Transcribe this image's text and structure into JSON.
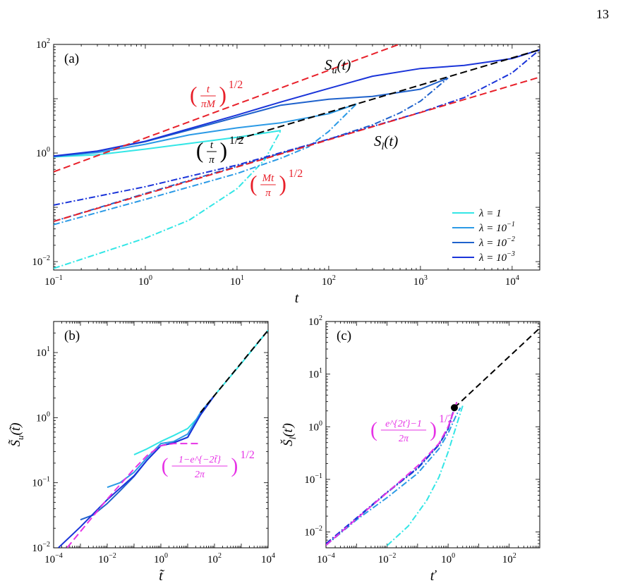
{
  "page_number": "13",
  "colors": {
    "lambda_1": "#33e6e6",
    "lambda_1e-1": "#2b9ae6",
    "lambda_1e-2": "#1f62cc",
    "lambda_1e-3": "#1a34d9",
    "asymptote_red": "#e8202a",
    "reference_black": "#000000",
    "magenta": "#e633e6"
  },
  "chart_data": [
    {
      "panel": "(a)",
      "type": "line",
      "xscale": "log",
      "yscale": "log",
      "xlabel": "t",
      "xlim": [
        0.1,
        20000
      ],
      "ylim": [
        0.007,
        100
      ],
      "xticks": [
        "10^{-1}",
        "10^{0}",
        "10^{1}",
        "10^{2}",
        "10^{3}",
        "10^{4}"
      ],
      "yticks": [
        "10^{-2}",
        "10^{0}",
        "10^{2}"
      ],
      "legend": {
        "position": "bottom-right",
        "entries": [
          "λ = 1",
          "λ = 10^{-1}",
          "λ = 10^{-2}",
          "λ = 10^{-3}"
        ]
      },
      "annotations": [
        "S_u(t)",
        "S_l(t)",
        "(t/(πM))^{1/2}",
        "(t/π)^{1/2}",
        "(Mt/π)^{1/2}"
      ],
      "series": [
        {
          "name": "λ = 1",
          "curve": "S_u",
          "style": "solid",
          "x": [
            0.1,
            0.3,
            1,
            3,
            10,
            30
          ],
          "y": [
            0.85,
            0.93,
            1.18,
            1.5,
            1.95,
            2.6
          ]
        },
        {
          "name": "λ = 10^{-1}",
          "curve": "S_u",
          "style": "solid",
          "x": [
            0.1,
            0.3,
            1,
            3,
            10,
            30,
            100,
            200
          ],
          "y": [
            0.86,
            1.02,
            1.45,
            2.15,
            2.9,
            3.6,
            5.3,
            8.0
          ]
        },
        {
          "name": "λ = 10^{-2}",
          "curve": "S_u",
          "style": "solid",
          "x": [
            0.1,
            0.3,
            1,
            3,
            10,
            30,
            100,
            300,
            1000,
            2000
          ],
          "y": [
            0.87,
            1.08,
            1.62,
            2.65,
            4.6,
            7.6,
            9.8,
            11.0,
            15.0,
            24.0
          ]
        },
        {
          "name": "λ = 10^{-3}",
          "curve": "S_u",
          "style": "solid",
          "x": [
            0.1,
            0.3,
            1,
            3,
            10,
            30,
            100,
            300,
            1000,
            3000,
            10000,
            20000
          ],
          "y": [
            0.88,
            1.09,
            1.65,
            2.8,
            5.0,
            8.7,
            15.5,
            26.0,
            36.0,
            41.0,
            55.0,
            80.0
          ]
        },
        {
          "name": "λ = 1",
          "curve": "S_l",
          "style": "dashdot",
          "x": [
            0.1,
            0.3,
            1,
            3,
            10,
            20,
            30
          ],
          "y": [
            0.0075,
            0.0138,
            0.027,
            0.058,
            0.22,
            0.75,
            2.6
          ]
        },
        {
          "name": "λ = 10^{-1}",
          "curve": "S_l",
          "style": "dashdot",
          "x": [
            0.1,
            1,
            10,
            30,
            60,
            100,
            200
          ],
          "y": [
            0.048,
            0.14,
            0.42,
            0.8,
            1.3,
            2.5,
            8.0
          ]
        },
        {
          "name": "λ = 10^{-2}",
          "curve": "S_l",
          "style": "dashdot",
          "x": [
            0.1,
            1,
            10,
            100,
            300,
            600,
            1000,
            2000
          ],
          "y": [
            0.055,
            0.18,
            0.57,
            1.8,
            3.3,
            5.5,
            9.0,
            24.0
          ]
        },
        {
          "name": "λ = 10^{-3}",
          "curve": "S_l",
          "style": "dashdot",
          "x": [
            0.1,
            1,
            10,
            100,
            1000,
            3000,
            10000,
            20000
          ],
          "y": [
            0.11,
            0.24,
            0.6,
            1.8,
            5.6,
            10.5,
            30.0,
            80.0
          ]
        },
        {
          "name": "(t/(πM))^{1/2}",
          "style": "dashed",
          "x": [
            0.1,
            1000
          ],
          "y": [
            0.45,
            140.0
          ]
        },
        {
          "name": "(Mt/π)^{1/2}",
          "style": "dashed",
          "x": [
            0.1,
            20000
          ],
          "y": [
            0.055,
            25.0
          ]
        },
        {
          "name": "(t/π)^{1/2}",
          "style": "dashed",
          "x": [
            10,
            20000
          ],
          "y": [
            1.78,
            80.0
          ]
        }
      ]
    },
    {
      "panel": "(b)",
      "type": "line",
      "xscale": "log",
      "yscale": "log",
      "xlabel": "t̃",
      "ylabel": "S̃_u(t̃)",
      "xlim": [
        0.0001,
        10000
      ],
      "ylim": [
        0.01,
        30
      ],
      "xticks": [
        "10^{-4}",
        "10^{-2}",
        "10^{0}",
        "10^{2}",
        "10^{4}"
      ],
      "yticks": [
        "10^{-2}",
        "10^{-1}",
        "10^{0}",
        "10^{1}"
      ],
      "annotations": [
        "((1−e^{−2t̃})/(2π))^{1/2}"
      ],
      "series": [
        {
          "name": "λ = 1",
          "style": "solid",
          "x": [
            0.1,
            0.3,
            1,
            3,
            10,
            30,
            100,
            1000,
            10000
          ],
          "y": [
            0.27,
            0.33,
            0.43,
            0.53,
            0.68,
            1.1,
            2.2,
            6.8,
            22.0
          ]
        },
        {
          "name": "λ = 10^{-1}",
          "style": "solid",
          "x": [
            0.01,
            0.03,
            0.1,
            0.3,
            1,
            3,
            10,
            30,
            100
          ],
          "y": [
            0.085,
            0.1,
            0.145,
            0.24,
            0.4,
            0.43,
            0.56,
            1.2,
            2.2
          ]
        },
        {
          "name": "λ = 10^{-2}",
          "style": "solid",
          "x": [
            0.001,
            0.003,
            0.01,
            0.03,
            0.1,
            0.3,
            1,
            3,
            10,
            30,
            100
          ],
          "y": [
            0.027,
            0.032,
            0.048,
            0.075,
            0.125,
            0.22,
            0.37,
            0.41,
            0.5,
            1.1,
            2.2
          ]
        },
        {
          "name": "λ = 10^{-3}",
          "style": "solid",
          "x": [
            0.00015,
            0.001,
            0.01,
            0.1,
            0.3,
            1,
            3,
            10,
            30,
            100
          ],
          "y": [
            0.01,
            0.021,
            0.055,
            0.128,
            0.22,
            0.37,
            0.41,
            0.5,
            1.1,
            2.2
          ]
        },
        {
          "name": "((1−e^{−2t̃})/(2π))^{1/2}",
          "style": "dashed",
          "x": [
            0.0001,
            0.001,
            0.01,
            0.1,
            0.3,
            1,
            3,
            30
          ],
          "y": [
            0.0056,
            0.0178,
            0.056,
            0.163,
            0.26,
            0.37,
            0.4,
            0.4
          ]
        },
        {
          "name": "reference",
          "style": "dashed",
          "x": [
            30,
            10000
          ],
          "y": [
            1.2,
            22.0
          ]
        }
      ]
    },
    {
      "panel": "(c)",
      "type": "line",
      "xscale": "log",
      "yscale": "log",
      "xlabel": "ť",
      "ylabel": "Š_l(ť)",
      "xlim": [
        0.0001,
        1000
      ],
      "ylim": [
        0.005,
        100
      ],
      "xticks": [
        "10^{-4}",
        "10^{-2}",
        "10^{0}",
        "10^{2}"
      ],
      "yticks": [
        "10^{-2}",
        "10^{-1}",
        "10^{0}",
        "10^{1}",
        "10^{2}"
      ],
      "annotations": [
        "((e^{2ť}−1)/(2π))^{1/2}"
      ],
      "marker_point": {
        "x": 1.6,
        "y": 2.3
      },
      "series": [
        {
          "name": "λ = 1",
          "style": "dashdot",
          "x": [
            0.01,
            0.05,
            0.2,
            0.5,
            1,
            2,
            3
          ],
          "y": [
            0.0055,
            0.013,
            0.04,
            0.11,
            0.33,
            1.2,
            2.5
          ]
        },
        {
          "name": "λ = 10^{-1}",
          "style": "dashdot",
          "x": [
            0.0001,
            0.001,
            0.01,
            0.1,
            0.5,
            1,
            1.8,
            2.5
          ],
          "y": [
            0.0056,
            0.017,
            0.045,
            0.13,
            0.38,
            0.75,
            1.6,
            2.3
          ]
        },
        {
          "name": "λ = 10^{-2}",
          "style": "dashdot",
          "x": [
            0.0001,
            0.001,
            0.01,
            0.1,
            0.5,
            1,
            1.6
          ],
          "y": [
            0.0056,
            0.0178,
            0.056,
            0.16,
            0.45,
            0.9,
            2.3
          ]
        },
        {
          "name": "λ = 10^{-3}",
          "style": "dashdot",
          "x": [
            0.0001,
            0.001,
            0.01,
            0.1,
            0.5,
            1,
            1.6
          ],
          "y": [
            0.006,
            0.0185,
            0.057,
            0.165,
            0.46,
            0.92,
            2.3
          ]
        },
        {
          "name": "((e^{2ť}−1)/(2π))^{1/2}",
          "style": "dashed",
          "x": [
            0.0001,
            0.001,
            0.01,
            0.1,
            0.5,
            1,
            1.5,
            2
          ],
          "y": [
            0.0056,
            0.0178,
            0.056,
            0.18,
            0.48,
            1.0,
            1.9,
            3.2
          ]
        },
        {
          "name": "reference",
          "style": "dashed",
          "x": [
            1.6,
            1000
          ],
          "y": [
            2.3,
            75.0
          ]
        }
      ]
    }
  ]
}
